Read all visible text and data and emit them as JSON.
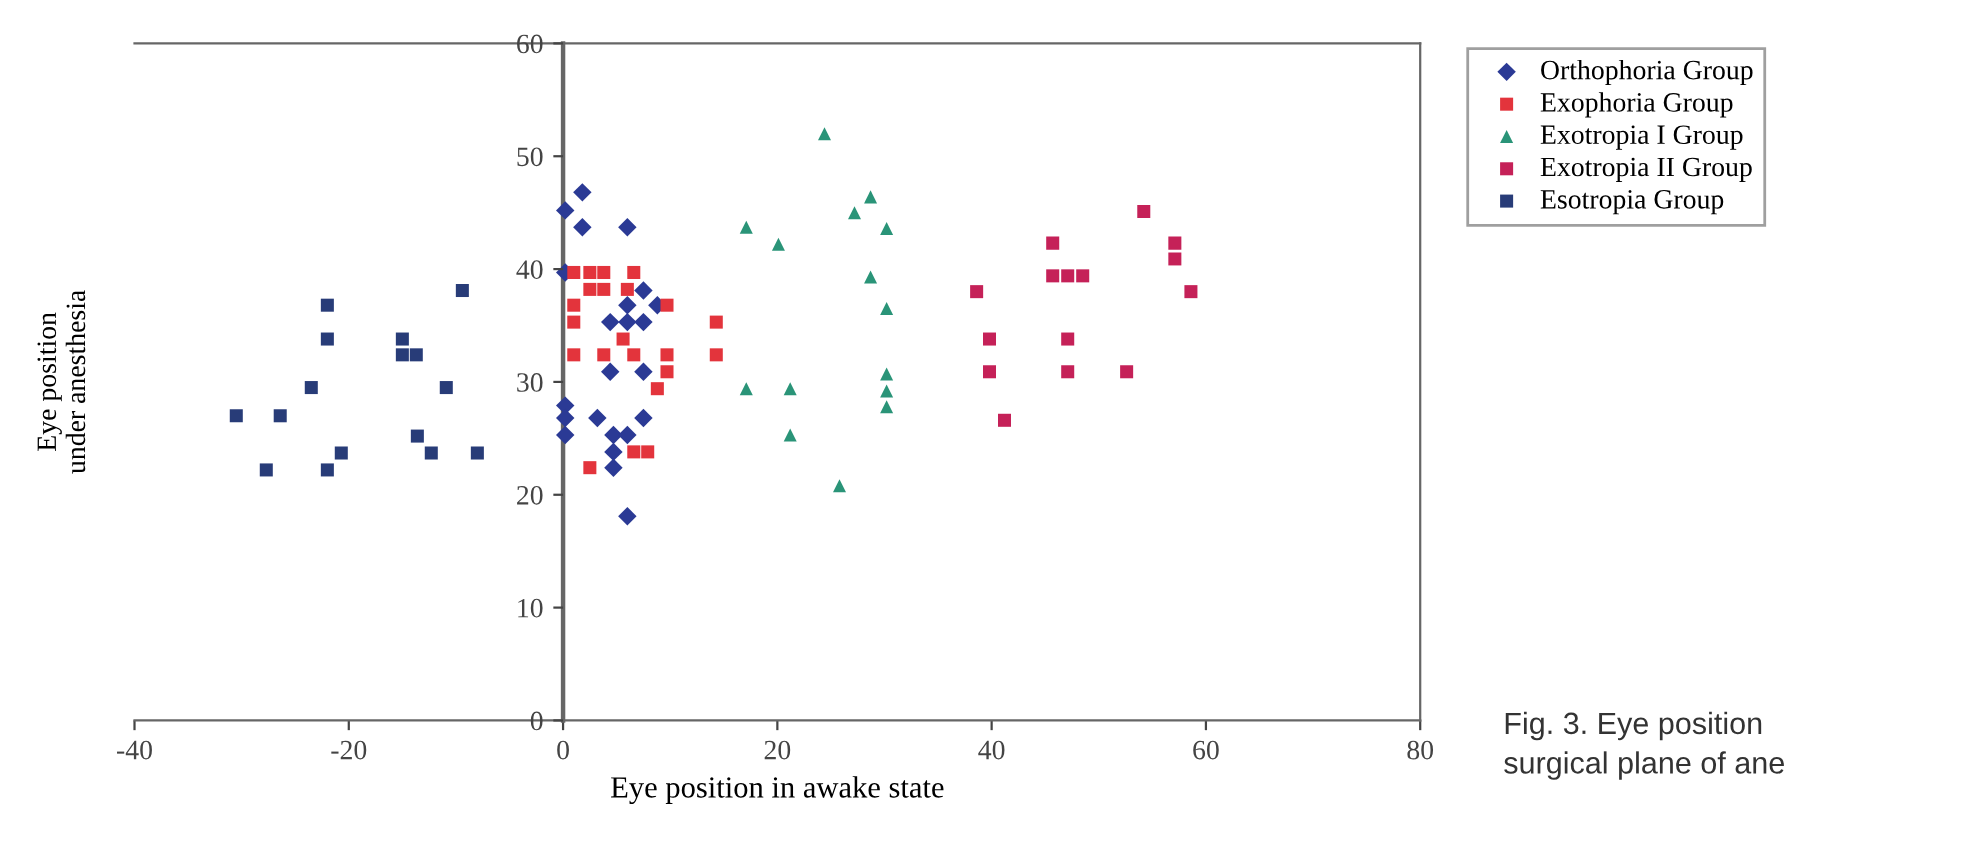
{
  "chart_data": {
    "type": "scatter",
    "xlabel": "Eye position in awake state",
    "ylabel": "Eye position\nunder anesthesia",
    "xlim": [
      -40,
      80
    ],
    "ylim": [
      0,
      60
    ],
    "xticks": [
      -40,
      -20,
      0,
      20,
      40,
      60,
      80
    ],
    "yticks": [
      0,
      10,
      20,
      30,
      40,
      50,
      60
    ],
    "grid": false,
    "legend": "top right",
    "annotations": [
      "Fig. 3. Eye position\nsurgical plane of ane"
    ],
    "series": [
      {
        "name": "Orthophoria Group",
        "color": "#2b3a95",
        "marker": "diamond",
        "x": [
          1.8,
          0.2,
          1.8,
          6.0,
          0.2,
          7.5,
          8.8,
          6.0,
          4.4,
          6.0,
          7.5,
          4.4,
          7.5,
          0.2,
          0.2,
          0.2,
          3.2,
          7.5,
          4.7,
          6.0,
          4.7,
          4.7,
          6.0
        ],
        "values": [
          46.8,
          45.2,
          43.7,
          43.7,
          39.7,
          38.1,
          36.8,
          36.8,
          35.3,
          35.3,
          35.3,
          30.9,
          30.9,
          27.9,
          26.8,
          25.3,
          26.8,
          26.8,
          25.3,
          25.3,
          23.8,
          22.4,
          18.1
        ]
      },
      {
        "name": "Exophoria Group",
        "color": "#e3343c",
        "marker": "square",
        "x": [
          1.0,
          2.5,
          3.8,
          6.6,
          2.5,
          3.8,
          6.0,
          1.0,
          9.7,
          1.0,
          14.3,
          5.6,
          1.0,
          3.8,
          6.6,
          9.7,
          14.3,
          9.7,
          8.8,
          6.6,
          7.9,
          2.5
        ],
        "values": [
          39.7,
          39.7,
          39.7,
          39.7,
          38.2,
          38.2,
          38.2,
          36.8,
          36.8,
          35.3,
          35.3,
          33.8,
          32.4,
          32.4,
          32.4,
          32.4,
          32.4,
          30.9,
          29.4,
          23.8,
          23.8,
          22.4
        ]
      },
      {
        "name": "Exotropia I Group",
        "color": "#2a9478",
        "marker": "triangle",
        "x": [
          17.1,
          20.1,
          17.1,
          21.2,
          21.2,
          24.4,
          28.7,
          27.2,
          30.2,
          28.7,
          30.2,
          30.2,
          30.2,
          30.2,
          25.8
        ],
        "values": [
          43.7,
          42.2,
          29.4,
          29.4,
          25.3,
          52.0,
          46.4,
          45.0,
          43.6,
          39.3,
          36.5,
          30.7,
          29.2,
          27.8,
          20.8
        ]
      },
      {
        "name": "Exotropia II Group",
        "color": "#c52158",
        "marker": "square",
        "x": [
          54.2,
          45.7,
          57.1,
          57.1,
          45.7,
          47.1,
          48.5,
          38.6,
          58.6,
          39.8,
          47.1,
          39.8,
          47.1,
          52.6,
          41.2
        ],
        "values": [
          45.1,
          42.3,
          42.3,
          40.9,
          39.4,
          39.4,
          39.4,
          38.0,
          38.0,
          33.8,
          33.8,
          30.9,
          30.9,
          30.9,
          26.6
        ]
      },
      {
        "name": "Esotropia Group",
        "color": "#283c78",
        "marker": "square",
        "x": [
          -30.5,
          -26.4,
          -27.7,
          -23.5,
          -22.0,
          -22.0,
          -22.0,
          -20.7,
          -15.0,
          -15.0,
          -13.7,
          -13.6,
          -12.3,
          -10.9,
          -9.4,
          -8.0
        ],
        "values": [
          27.0,
          27.0,
          22.2,
          29.5,
          36.8,
          33.8,
          22.2,
          23.7,
          33.8,
          32.4,
          32.4,
          25.2,
          23.7,
          29.5,
          38.1,
          23.7
        ]
      }
    ]
  }
}
